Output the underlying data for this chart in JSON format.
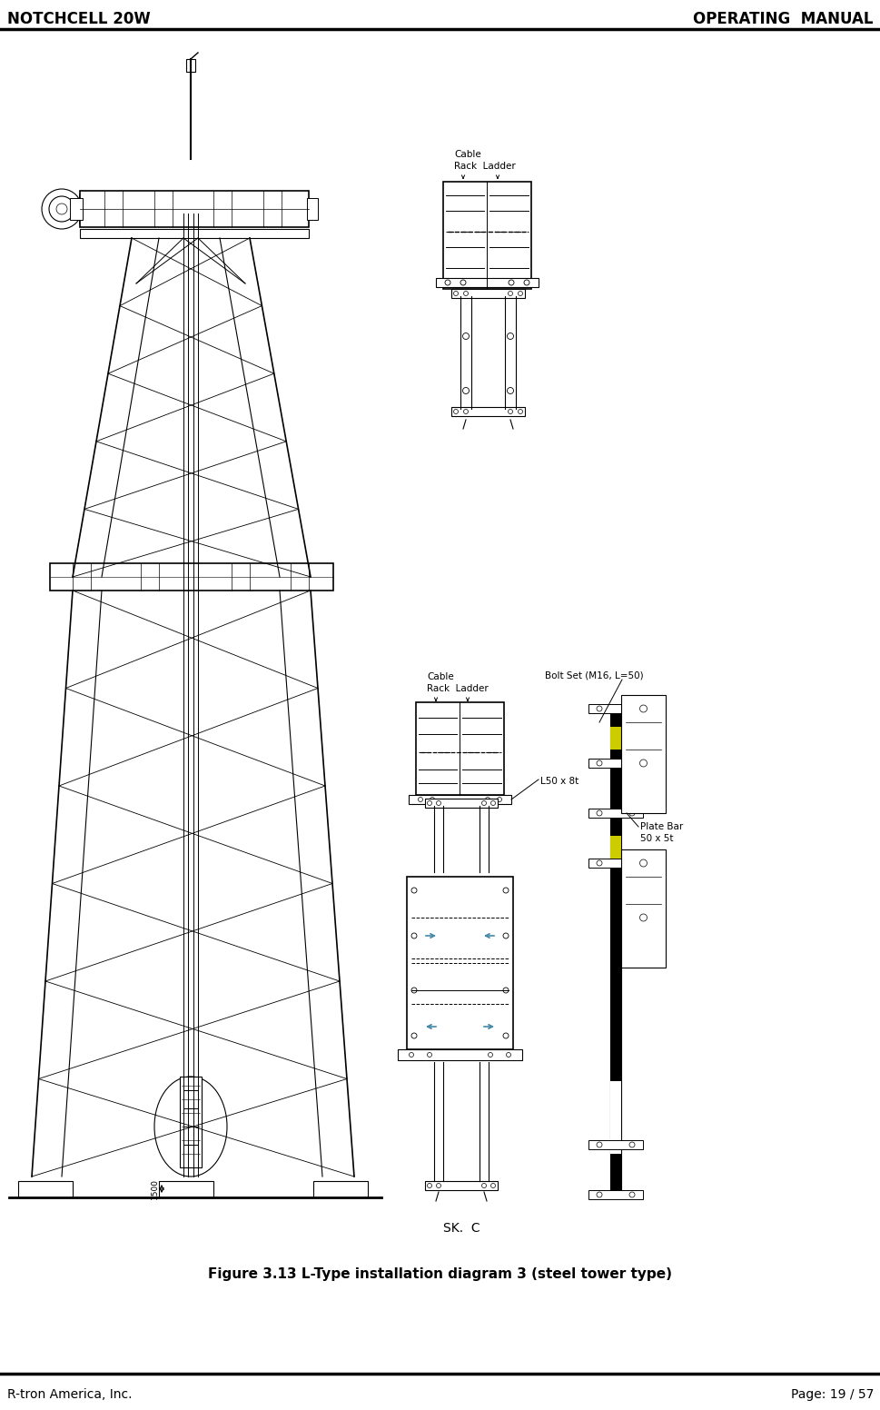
{
  "header_left": "NOTCHCELL 20W",
  "header_right": "OPERATING  MANUAL",
  "footer_left": "R-tron America, Inc.",
  "footer_right": "Page: 19 / 57",
  "caption": "Figure 3.13 L-Type installation diagram 3 (steel tower type)",
  "bg_color": "#ffffff",
  "header_font_size": 12,
  "footer_font_size": 10,
  "caption_font_size": 11,
  "text_color": "#000000"
}
